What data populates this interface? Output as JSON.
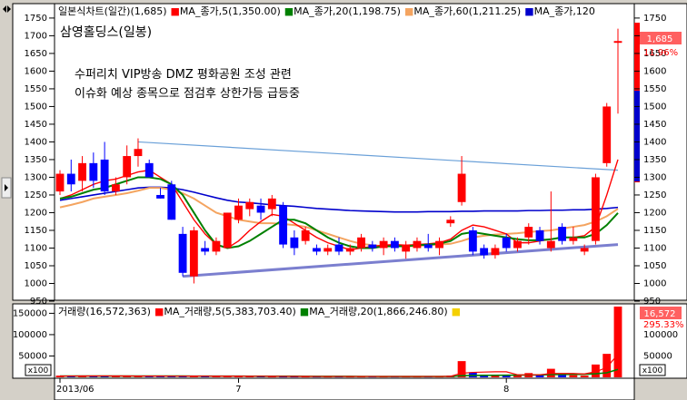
{
  "chart_data": [
    {
      "type": "candlestick",
      "header": {
        "title": "일본식차트(일간)",
        "last": "(1,685)",
        "ma": [
          {
            "label": "MA_종가,5",
            "value": "(1,350.00)",
            "color": "#ff0000"
          },
          {
            "label": "MA_종가,20",
            "value": "(1,198.75)",
            "color": "#008000"
          },
          {
            "label": "MA_종가,60",
            "value": "(1,211.25)",
            "color": "#f4a460"
          },
          {
            "label": "MA_종가,120",
            "value": "",
            "color": "#0000cc"
          }
        ]
      },
      "stock_name": "삼영홀딩스(일봉)",
      "annotation_line1": "수퍼리치 VIP방송 DMZ 평화공원 조성 관련",
      "annotation_line2": "이슈화 예상 종목으로 점검후 상한가등 급등중",
      "ylim": [
        950,
        1760
      ],
      "yticks": [
        950,
        1000,
        1050,
        1100,
        1150,
        1200,
        1250,
        1300,
        1350,
        1400,
        1450,
        1500,
        1550,
        1600,
        1650,
        1700,
        1750
      ],
      "price_tag": "1,685",
      "pct_tag": "11.96%",
      "candles": [
        {
          "o": 1260,
          "h": 1320,
          "l": 1250,
          "c": 1310
        },
        {
          "o": 1310,
          "h": 1350,
          "l": 1260,
          "c": 1280
        },
        {
          "o": 1290,
          "h": 1360,
          "l": 1260,
          "c": 1340
        },
        {
          "o": 1340,
          "h": 1370,
          "l": 1270,
          "c": 1290
        },
        {
          "o": 1350,
          "h": 1400,
          "l": 1250,
          "c": 1260
        },
        {
          "o": 1260,
          "h": 1300,
          "l": 1250,
          "c": 1280
        },
        {
          "o": 1300,
          "h": 1390,
          "l": 1280,
          "c": 1360
        },
        {
          "o": 1360,
          "h": 1410,
          "l": 1330,
          "c": 1380
        },
        {
          "o": 1340,
          "h": 1350,
          "l": 1300,
          "c": 1300
        },
        {
          "o": 1250,
          "h": 1270,
          "l": 1240,
          "c": 1240
        },
        {
          "o": 1280,
          "h": 1290,
          "l": 1180,
          "c": 1180
        },
        {
          "o": 1140,
          "h": 1160,
          "l": 1020,
          "c": 1030
        },
        {
          "o": 1020,
          "h": 1160,
          "l": 1000,
          "c": 1150
        },
        {
          "o": 1100,
          "h": 1120,
          "l": 1080,
          "c": 1090
        },
        {
          "o": 1090,
          "h": 1130,
          "l": 1080,
          "c": 1120
        },
        {
          "o": 1100,
          "h": 1200,
          "l": 1100,
          "c": 1200
        },
        {
          "o": 1180,
          "h": 1240,
          "l": 1170,
          "c": 1220
        },
        {
          "o": 1210,
          "h": 1240,
          "l": 1190,
          "c": 1230
        },
        {
          "o": 1220,
          "h": 1240,
          "l": 1180,
          "c": 1200
        },
        {
          "o": 1210,
          "h": 1250,
          "l": 1190,
          "c": 1240
        },
        {
          "o": 1220,
          "h": 1230,
          "l": 1100,
          "c": 1110
        },
        {
          "o": 1130,
          "h": 1150,
          "l": 1080,
          "c": 1100
        },
        {
          "o": 1120,
          "h": 1160,
          "l": 1110,
          "c": 1150
        },
        {
          "o": 1100,
          "h": 1110,
          "l": 1080,
          "c": 1090
        },
        {
          "o": 1090,
          "h": 1110,
          "l": 1080,
          "c": 1100
        },
        {
          "o": 1110,
          "h": 1130,
          "l": 1080,
          "c": 1090
        },
        {
          "o": 1090,
          "h": 1110,
          "l": 1080,
          "c": 1100
        },
        {
          "o": 1100,
          "h": 1140,
          "l": 1090,
          "c": 1130
        },
        {
          "o": 1110,
          "h": 1120,
          "l": 1090,
          "c": 1100
        },
        {
          "o": 1100,
          "h": 1130,
          "l": 1080,
          "c": 1120
        },
        {
          "o": 1120,
          "h": 1130,
          "l": 1090,
          "c": 1100
        },
        {
          "o": 1090,
          "h": 1120,
          "l": 1070,
          "c": 1110
        },
        {
          "o": 1100,
          "h": 1130,
          "l": 1090,
          "c": 1120
        },
        {
          "o": 1110,
          "h": 1140,
          "l": 1090,
          "c": 1100
        },
        {
          "o": 1100,
          "h": 1130,
          "l": 1080,
          "c": 1120
        },
        {
          "o": 1170,
          "h": 1190,
          "l": 1160,
          "c": 1180
        },
        {
          "o": 1230,
          "h": 1360,
          "l": 1220,
          "c": 1310
        },
        {
          "o": 1150,
          "h": 1160,
          "l": 1080,
          "c": 1090
        },
        {
          "o": 1100,
          "h": 1110,
          "l": 1070,
          "c": 1080
        },
        {
          "o": 1080,
          "h": 1110,
          "l": 1070,
          "c": 1100
        },
        {
          "o": 1130,
          "h": 1140,
          "l": 1090,
          "c": 1100
        },
        {
          "o": 1100,
          "h": 1130,
          "l": 1090,
          "c": 1120
        },
        {
          "o": 1130,
          "h": 1170,
          "l": 1110,
          "c": 1160
        },
        {
          "o": 1150,
          "h": 1160,
          "l": 1110,
          "c": 1120
        },
        {
          "o": 1100,
          "h": 1260,
          "l": 1090,
          "c": 1120
        },
        {
          "o": 1160,
          "h": 1170,
          "l": 1110,
          "c": 1120
        },
        {
          "o": 1120,
          "h": 1160,
          "l": 1110,
          "c": 1130
        },
        {
          "o": 1090,
          "h": 1110,
          "l": 1080,
          "c": 1100
        },
        {
          "o": 1120,
          "h": 1310,
          "l": 1110,
          "c": 1300
        },
        {
          "o": 1340,
          "h": 1510,
          "l": 1330,
          "c": 1500
        },
        {
          "o": 1680,
          "h": 1720,
          "l": 1480,
          "c": 1685
        }
      ],
      "ma5": [
        1240,
        1250,
        1265,
        1280,
        1290,
        1295,
        1305,
        1315,
        1320,
        1300,
        1280,
        1230,
        1180,
        1140,
        1110,
        1100,
        1120,
        1150,
        1175,
        1195,
        1190,
        1170,
        1150,
        1130,
        1115,
        1105,
        1095,
        1100,
        1105,
        1108,
        1110,
        1108,
        1110,
        1112,
        1115,
        1125,
        1150,
        1165,
        1160,
        1150,
        1140,
        1115,
        1115,
        1120,
        1125,
        1130,
        1130,
        1135,
        1160,
        1250,
        1350
      ],
      "ma20": [
        1240,
        1245,
        1255,
        1265,
        1270,
        1280,
        1290,
        1300,
        1300,
        1295,
        1280,
        1250,
        1200,
        1150,
        1110,
        1100,
        1105,
        1120,
        1140,
        1160,
        1180,
        1180,
        1170,
        1150,
        1130,
        1115,
        1105,
        1100,
        1100,
        1105,
        1105,
        1105,
        1108,
        1110,
        1112,
        1120,
        1140,
        1145,
        1140,
        1135,
        1130,
        1125,
        1122,
        1122,
        1125,
        1130,
        1130,
        1130,
        1140,
        1165,
        1199
      ],
      "ma60": [
        1215,
        1222,
        1230,
        1240,
        1245,
        1250,
        1255,
        1262,
        1270,
        1270,
        1265,
        1255,
        1240,
        1220,
        1200,
        1190,
        1180,
        1175,
        1170,
        1170,
        1168,
        1165,
        1160,
        1150,
        1140,
        1130,
        1120,
        1112,
        1108,
        1105,
        1105,
        1105,
        1106,
        1108,
        1110,
        1112,
        1120,
        1130,
        1135,
        1138,
        1140,
        1142,
        1145,
        1148,
        1150,
        1155,
        1160,
        1165,
        1175,
        1190,
        1211
      ],
      "ma120": [
        1235,
        1240,
        1245,
        1250,
        1255,
        1260,
        1265,
        1270,
        1272,
        1272,
        1270,
        1265,
        1258,
        1250,
        1242,
        1235,
        1230,
        1228,
        1225,
        1222,
        1220,
        1218,
        1215,
        1212,
        1210,
        1208,
        1206,
        1205,
        1204,
        1203,
        1202,
        1202,
        1202,
        1203,
        1203,
        1203,
        1204,
        1204,
        1205,
        1205,
        1205,
        1205,
        1206,
        1206,
        1207,
        1207,
        1208,
        1208,
        1210,
        1212,
        1215
      ],
      "ma_colors": {
        "ma5": "#ff0000",
        "ma20": "#008000",
        "ma60": "#f4a460",
        "ma120": "#0000cc"
      },
      "trendline_upper": {
        "from": [
          7,
          1400
        ],
        "to": [
          50,
          1320
        ],
        "color": "#6aa0d8"
      },
      "trendline_lower": {
        "from": [
          11,
          1020
        ],
        "to": [
          50,
          1110
        ],
        "color": "#7b7fcf"
      }
    },
    {
      "type": "bar",
      "header": {
        "title": "거래량",
        "value": "(16,572,363)",
        "ma": [
          {
            "label": "MA_거래량,5",
            "value": "(5,383,703.40)",
            "color": "#ff0000"
          },
          {
            "label": "MA_거래량,20",
            "value": "(1,866,246.80)",
            "color": "#008000"
          },
          {
            "label": "",
            "value": "",
            "color": "#f4d000"
          }
        ]
      },
      "ylim": [
        0,
        170000
      ],
      "yticks": [
        50000,
        100000,
        150000
      ],
      "unit": "x100",
      "value_tag": "16,572",
      "pct_tag": "295.33%",
      "values": [
        4000,
        3000,
        3500,
        3000,
        3500,
        3000,
        3000,
        3000,
        2500,
        2500,
        2500,
        3000,
        3500,
        2500,
        2500,
        2500,
        2500,
        2500,
        2500,
        2000,
        2000,
        2000,
        2000,
        2000,
        2000,
        2000,
        2000,
        2000,
        2000,
        2000,
        2000,
        2000,
        2000,
        2000,
        2000,
        4000,
        38000,
        12000,
        6000,
        4000,
        4000,
        5000,
        10000,
        6000,
        20000,
        6000,
        5000,
        4000,
        30000,
        55000,
        165724
      ],
      "ma5": [
        3000,
        3100,
        3200,
        3200,
        3300,
        3200,
        3200,
        3100,
        3000,
        2900,
        2800,
        2800,
        2900,
        2800,
        2700,
        2600,
        2600,
        2500,
        2500,
        2400,
        2300,
        2200,
        2100,
        2000,
        2000,
        2000,
        2000,
        2000,
        2000,
        2000,
        2000,
        2000,
        2000,
        2000,
        2000,
        2400,
        9600,
        11600,
        12400,
        13000,
        13000,
        6000,
        6000,
        6000,
        9000,
        9000,
        9000,
        8000,
        13000,
        23000,
        53837
      ],
      "ma20": [
        3000,
        3000,
        3050,
        3100,
        3150,
        3150,
        3150,
        3100,
        3050,
        3000,
        2950,
        2950,
        2900,
        2850,
        2800,
        2750,
        2700,
        2650,
        2600,
        2550,
        2500,
        2450,
        2400,
        2350,
        2300,
        2250,
        2200,
        2150,
        2100,
        2050,
        2000,
        2000,
        2000,
        2000,
        2000,
        2100,
        3900,
        4400,
        4700,
        4800,
        5000,
        5100,
        5500,
        5700,
        6500,
        6700,
        6900,
        7000,
        8400,
        10600,
        18662
      ]
    }
  ],
  "x_axis": {
    "labels": [
      {
        "text": "2013/06",
        "idx": 0
      },
      {
        "text": "7",
        "idx": 16
      },
      {
        "text": "8",
        "idx": 40
      }
    ]
  }
}
